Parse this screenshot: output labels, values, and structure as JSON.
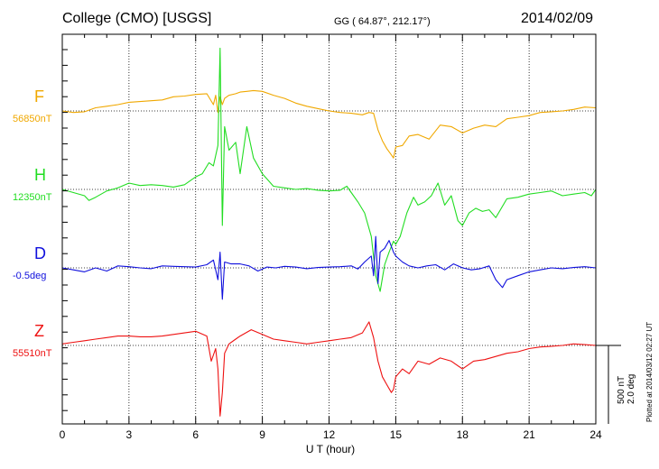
{
  "header": {
    "station": "College (CMO)  [USGS]",
    "coords": "GG ( 64.87°, 212.17°)",
    "date": "2014/02/09"
  },
  "plotted_note": "Plotted at 2014/03/12 02:27 UT",
  "scale": {
    "nt": "500 nT",
    "deg": "2.0 deg"
  },
  "chart_data": {
    "type": "line",
    "xlabel": "U T (hour)",
    "xlim": [
      0,
      24
    ],
    "xticks": [
      "0",
      "3",
      "6",
      "9",
      "12",
      "15",
      "18",
      "21",
      "24"
    ],
    "grid": true,
    "traces": [
      {
        "name": "F",
        "baseline_label": "56850nT",
        "color": "#f0a800",
        "baseline": 56850,
        "units": "nT",
        "x": [
          0,
          0.5,
          1,
          1.5,
          2,
          2.5,
          3,
          3.5,
          4,
          4.5,
          5,
          5.5,
          6,
          6.5,
          6.8,
          6.9,
          7.0,
          7.1,
          7.2,
          7.3,
          7.5,
          7.8,
          8,
          8.3,
          8.6,
          9,
          9.5,
          10,
          10.5,
          11,
          11.5,
          12,
          12.5,
          13,
          13.5,
          13.8,
          14.0,
          14.2,
          14.4,
          14.6,
          14.8,
          14.9,
          15.0,
          15.3,
          15.6,
          16,
          16.5,
          17,
          17.5,
          18,
          18.5,
          19,
          19.5,
          20,
          20.5,
          21,
          21.5,
          22,
          22.5,
          23,
          23.5,
          24
        ],
        "y": [
          0,
          -10,
          -5,
          20,
          30,
          40,
          55,
          60,
          65,
          70,
          90,
          95,
          105,
          110,
          40,
          100,
          -10,
          90,
          40,
          80,
          100,
          110,
          120,
          125,
          130,
          125,
          100,
          80,
          50,
          30,
          15,
          0,
          -10,
          -15,
          -25,
          -10,
          -15,
          -120,
          -190,
          -240,
          -280,
          -300,
          -230,
          -220,
          -160,
          -150,
          -180,
          -90,
          -100,
          -140,
          -110,
          -90,
          -100,
          -50,
          -40,
          -30,
          -10,
          -5,
          0,
          10,
          25,
          20
        ]
      },
      {
        "name": "H",
        "baseline_label": "12350nT",
        "color": "#22dd22",
        "baseline": 12350,
        "units": "nT",
        "x": [
          0,
          0.5,
          1,
          1.2,
          1.5,
          2,
          2.5,
          3,
          3.5,
          4,
          4.5,
          5,
          5.5,
          6,
          6.3,
          6.6,
          6.8,
          7.0,
          7.1,
          7.2,
          7.3,
          7.5,
          7.8,
          8.0,
          8.3,
          8.6,
          9,
          9.5,
          10,
          10.5,
          11,
          11.5,
          12,
          12.5,
          12.8,
          13,
          13.3,
          13.6,
          13.9,
          14.1,
          14.3,
          14.5,
          14.7,
          14.9,
          15.0,
          15.2,
          15.5,
          15.8,
          16,
          16.3,
          16.6,
          16.9,
          17.2,
          17.5,
          17.8,
          18,
          18.3,
          18.6,
          18.9,
          19.2,
          19.5,
          20,
          20.5,
          21,
          21.5,
          22,
          22.5,
          23,
          23.5,
          23.8,
          24
        ],
        "y": [
          0,
          -20,
          -40,
          -70,
          -50,
          -10,
          10,
          40,
          25,
          30,
          25,
          15,
          30,
          80,
          100,
          170,
          150,
          280,
          900,
          -230,
          400,
          250,
          300,
          100,
          400,
          200,
          100,
          20,
          10,
          0,
          5,
          -5,
          -10,
          -5,
          20,
          -20,
          -80,
          -150,
          -300,
          -550,
          -650,
          -480,
          -400,
          -330,
          -350,
          -300,
          -150,
          -50,
          -100,
          -80,
          -40,
          40,
          -100,
          -40,
          -200,
          -230,
          -150,
          -120,
          -140,
          -130,
          -180,
          -60,
          -50,
          -30,
          -20,
          -10,
          -40,
          -30,
          -20,
          -40,
          0
        ]
      },
      {
        "name": "D",
        "baseline_label": "-0.5deg",
        "color": "#1010dd",
        "baseline": -0.5,
        "units": "deg",
        "x": [
          0,
          0.5,
          1,
          1.5,
          2,
          2.5,
          3,
          3.5,
          4,
          4.5,
          5,
          5.5,
          6,
          6.5,
          6.8,
          7.0,
          7.1,
          7.2,
          7.3,
          7.6,
          8,
          8.4,
          8.8,
          9.2,
          9.6,
          10,
          10.5,
          11,
          11.5,
          12,
          12.5,
          13,
          13.3,
          13.6,
          13.9,
          14.0,
          14.1,
          14.2,
          14.3,
          14.5,
          14.7,
          14.9,
          15.0,
          15.3,
          15.6,
          16,
          16.4,
          16.8,
          17.2,
          17.6,
          18,
          18.4,
          18.8,
          19.2,
          19.5,
          19.8,
          20,
          20.5,
          21,
          21.5,
          22,
          22.5,
          23,
          23.5,
          24
        ],
        "y": [
          0,
          -0.05,
          -0.1,
          0,
          -0.08,
          0.05,
          0.03,
          0,
          -0.02,
          0.05,
          0.04,
          0.03,
          0.02,
          0.08,
          0.2,
          -0.3,
          0.4,
          -0.8,
          0.15,
          0.1,
          0.1,
          0.05,
          -0.08,
          0.02,
          0,
          0.04,
          0.02,
          -0.02,
          0.01,
          0.02,
          0.03,
          0.05,
          -0.03,
          0.15,
          0.3,
          -0.2,
          0.8,
          -0.4,
          0.4,
          0.5,
          0.7,
          0.4,
          0.3,
          0.15,
          0.05,
          0,
          0.05,
          0.08,
          -0.05,
          0.1,
          0,
          -0.05,
          -0.02,
          0.05,
          -0.3,
          -0.5,
          -0.3,
          -0.2,
          -0.1,
          -0.05,
          0,
          -0.02,
          0.01,
          0.03,
          0
        ]
      },
      {
        "name": "Z",
        "baseline_label": "55510nT",
        "color": "#ee1111",
        "baseline": 55510,
        "units": "nT",
        "x": [
          0,
          0.5,
          1,
          1.5,
          2,
          2.5,
          3,
          3.5,
          4,
          4.5,
          5,
          5.5,
          6,
          6.5,
          6.7,
          6.9,
          7.0,
          7.1,
          7.2,
          7.3,
          7.5,
          7.8,
          8,
          8.5,
          9,
          9.5,
          10,
          10.5,
          11,
          11.5,
          12,
          12.5,
          13,
          13.5,
          13.8,
          14.0,
          14.2,
          14.4,
          14.6,
          14.8,
          14.9,
          15.0,
          15.3,
          15.6,
          16,
          16.5,
          17,
          17.5,
          18,
          18.5,
          19,
          19.5,
          20,
          20.5,
          21,
          21.5,
          22,
          22.5,
          23,
          23.5,
          24
        ],
        "y": [
          10,
          20,
          30,
          40,
          50,
          60,
          60,
          55,
          55,
          60,
          70,
          80,
          90,
          60,
          -100,
          -20,
          -150,
          -450,
          -300,
          -50,
          10,
          40,
          60,
          100,
          70,
          40,
          30,
          20,
          10,
          20,
          30,
          40,
          50,
          80,
          150,
          50,
          -100,
          -200,
          -250,
          -300,
          -280,
          -200,
          -150,
          -180,
          -100,
          -120,
          -80,
          -100,
          -150,
          -100,
          -90,
          -70,
          -50,
          -40,
          -20,
          -10,
          -5,
          0,
          10,
          5,
          0
        ]
      }
    ]
  }
}
